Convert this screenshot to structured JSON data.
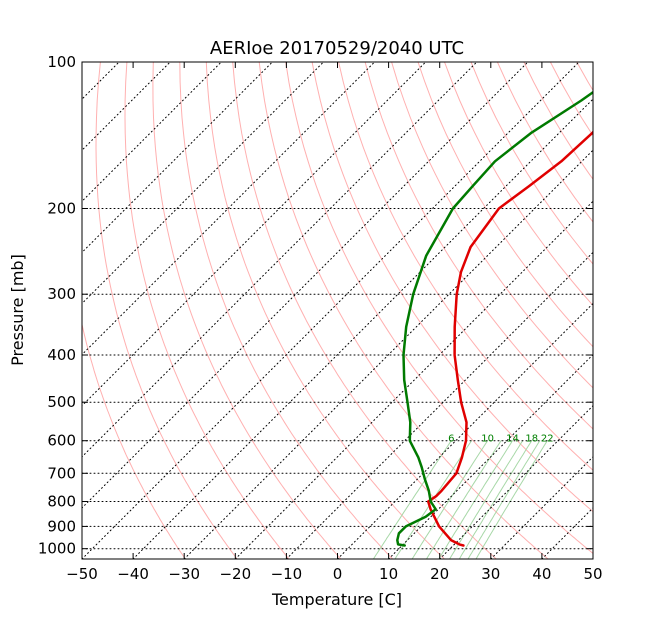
{
  "chart_data": {
    "type": "line",
    "title": "AERIoe 20170529/2040 UTC",
    "xlabel": "Temperature [C]",
    "ylabel": "Pressure [mb]",
    "xlim": [
      -50,
      50
    ],
    "ylim": [
      1050,
      100
    ],
    "y_scale": "log",
    "x_ticks": [
      "−50",
      "−40",
      "−30",
      "−20",
      "−10",
      "0",
      "10",
      "20",
      "30",
      "40",
      "50"
    ],
    "y_ticks": [
      "100",
      "200",
      "300",
      "400",
      "500",
      "600",
      "700",
      "800",
      "900",
      "1000"
    ],
    "grid": true,
    "skew_t": true,
    "colors": {
      "temperature": "#e00000",
      "dewpoint": "#007a00",
      "dry_adiabats": "#ffb0b0",
      "mixing_ratio_lines": "#a8d8a8",
      "isobars_isotherms_grid": "#000000"
    },
    "mixing_ratio_labels": [
      "6",
      "10",
      "14",
      "18",
      "22"
    ],
    "series": [
      {
        "key": "temperature",
        "pressure": [
          985,
          980,
          960,
          900,
          830,
          800,
          780,
          760,
          700,
          650,
          600,
          550,
          500,
          450,
          400,
          350,
          300,
          270,
          240,
          200,
          180,
          160,
          140,
          120,
          105,
          100
        ],
        "values": [
          22,
          21,
          18.5,
          13.5,
          8.5,
          6.5,
          7,
          7,
          6.5,
          4.5,
          2,
          -1.5,
          -6.5,
          -11.5,
          -17,
          -22.5,
          -28.5,
          -32,
          -35,
          -37,
          -35.5,
          -34,
          -33.5,
          -34,
          -34,
          -33.5
        ]
      },
      {
        "key": "dewpoint",
        "pressure": [
          985,
          980,
          960,
          930,
          900,
          860,
          830,
          800,
          760,
          720,
          680,
          650,
          600,
          550,
          500,
          450,
          400,
          350,
          300,
          250,
          200,
          180,
          160,
          140,
          120,
          110,
          100
        ],
        "values": [
          10.5,
          9,
          8,
          7,
          7,
          9,
          9.5,
          7,
          4.5,
          1.5,
          -1.5,
          -4,
          -9,
          -12.5,
          -17,
          -22,
          -27,
          -32,
          -37,
          -42,
          -46,
          -46.5,
          -47,
          -45.5,
          -42,
          -40.5,
          -39.5
        ]
      }
    ]
  }
}
